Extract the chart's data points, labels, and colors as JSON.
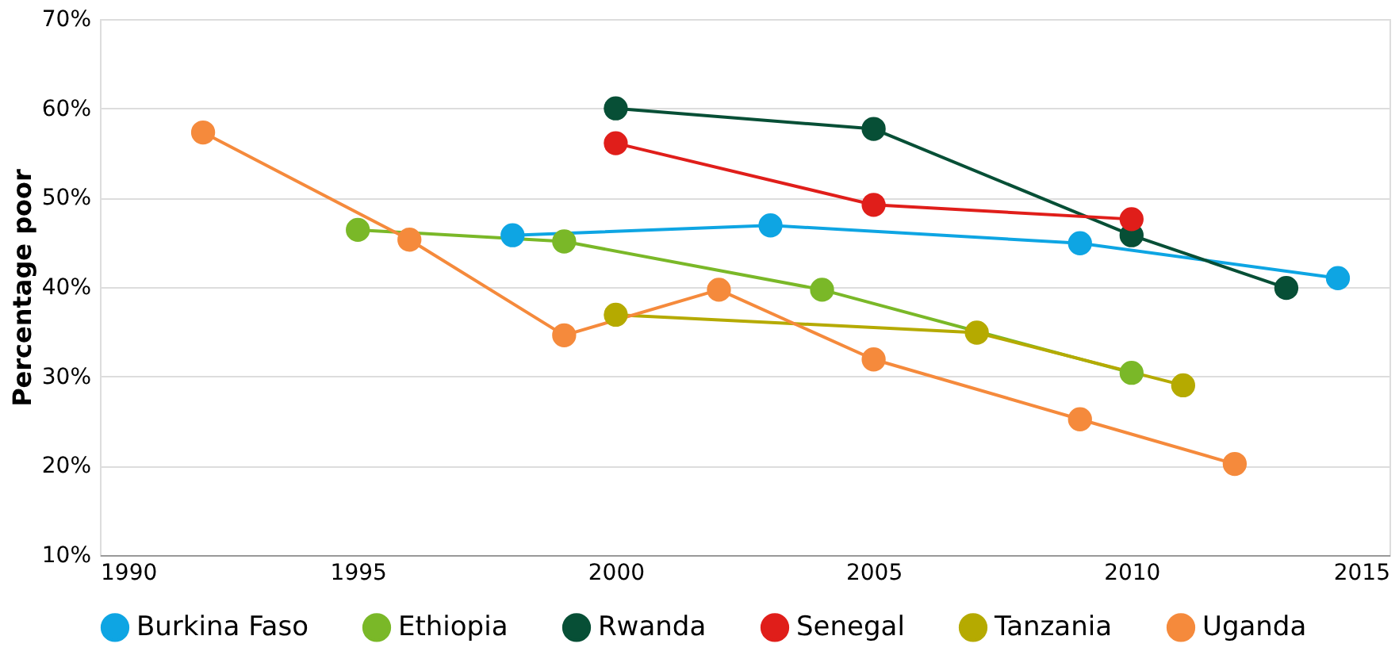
{
  "chart_data": {
    "type": "line",
    "ylabel": "Percentage poor",
    "xlim": [
      1990,
      2015
    ],
    "xticks": [
      1990,
      1995,
      2000,
      2005,
      2010,
      2015
    ],
    "ylim": [
      10,
      70
    ],
    "yticks": [
      {
        "value": 10,
        "label": "10%"
      },
      {
        "value": 20,
        "label": "20%"
      },
      {
        "value": 30,
        "label": "30%"
      },
      {
        "value": 40,
        "label": "40%"
      },
      {
        "value": 50,
        "label": "50%"
      },
      {
        "value": 60,
        "label": "60%"
      },
      {
        "value": 70,
        "label": "70%"
      }
    ],
    "grid": "y",
    "legend": "bottom",
    "marker": "circle",
    "line_style": "solid",
    "series": [
      {
        "name": "Burkina Faso",
        "color": "#0ea5e3",
        "x": [
          1998,
          2003,
          2009,
          2014
        ],
        "values": [
          45.8,
          46.9,
          44.9,
          41.0
        ]
      },
      {
        "name": "Ethiopia",
        "color": "#7ab828",
        "x": [
          1995,
          1999,
          2004,
          2010
        ],
        "values": [
          46.4,
          45.1,
          39.7,
          30.4
        ]
      },
      {
        "name": "Rwanda",
        "color": "#074f36",
        "x": [
          2000,
          2005,
          2010,
          2013
        ],
        "values": [
          60.0,
          57.7,
          45.8,
          39.9
        ]
      },
      {
        "name": "Senegal",
        "color": "#e01e1a",
        "x": [
          2000,
          2005,
          2010
        ],
        "values": [
          56.1,
          49.2,
          47.6
        ]
      },
      {
        "name": "Tanzania",
        "color": "#b5aa00",
        "x": [
          2000,
          2007,
          2011
        ],
        "values": [
          36.9,
          34.9,
          29.0
        ]
      },
      {
        "name": "Uganda",
        "color": "#f58a3c",
        "x": [
          1992,
          1996,
          1999,
          2002,
          2005,
          2009,
          2012
        ],
        "values": [
          57.3,
          45.3,
          34.6,
          39.7,
          31.9,
          25.2,
          20.2
        ]
      }
    ]
  }
}
